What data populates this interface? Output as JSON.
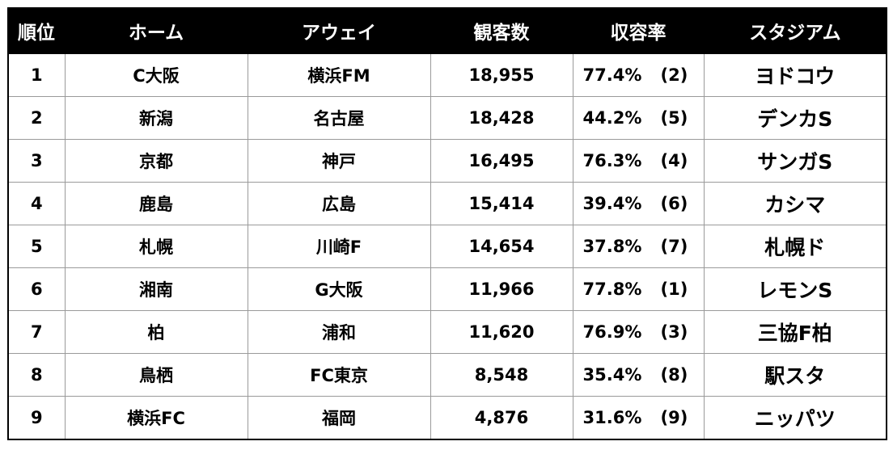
{
  "headers": {
    "rank": "順位",
    "home": "ホーム",
    "away": "アウェイ",
    "attendance": "観客数",
    "capacity_rate": "収容率",
    "stadium": "スタジアム"
  },
  "rows": [
    {
      "rank": "1",
      "home": "C大阪",
      "away": "横浜FM",
      "attendance": "18,955",
      "rate": "77.4%",
      "rate_rank": "(2)",
      "stadium": "ヨドコウ"
    },
    {
      "rank": "2",
      "home": "新潟",
      "away": "名古屋",
      "attendance": "18,428",
      "rate": "44.2%",
      "rate_rank": "(5)",
      "stadium": "デンカS"
    },
    {
      "rank": "3",
      "home": "京都",
      "away": "神戸",
      "attendance": "16,495",
      "rate": "76.3%",
      "rate_rank": "(4)",
      "stadium": "サンガS"
    },
    {
      "rank": "4",
      "home": "鹿島",
      "away": "広島",
      "attendance": "15,414",
      "rate": "39.4%",
      "rate_rank": "(6)",
      "stadium": "カシマ"
    },
    {
      "rank": "5",
      "home": "札幌",
      "away": "川崎F",
      "attendance": "14,654",
      "rate": "37.8%",
      "rate_rank": "(7)",
      "stadium": "札幌ド"
    },
    {
      "rank": "6",
      "home": "湘南",
      "away": "G大阪",
      "attendance": "11,966",
      "rate": "77.8%",
      "rate_rank": "(1)",
      "stadium": "レモンS"
    },
    {
      "rank": "7",
      "home": "柏",
      "away": "浦和",
      "attendance": "11,620",
      "rate": "76.9%",
      "rate_rank": "(3)",
      "stadium": "三協F柏"
    },
    {
      "rank": "8",
      "home": "鳥栖",
      "away": "FC東京",
      "attendance": "8,548",
      "rate": "35.4%",
      "rate_rank": "(8)",
      "stadium": "駅スタ"
    },
    {
      "rank": "9",
      "home": "横浜FC",
      "away": "福岡",
      "attendance": "4,876",
      "rate": "31.6%",
      "rate_rank": "(9)",
      "stadium": "ニッパツ"
    }
  ]
}
